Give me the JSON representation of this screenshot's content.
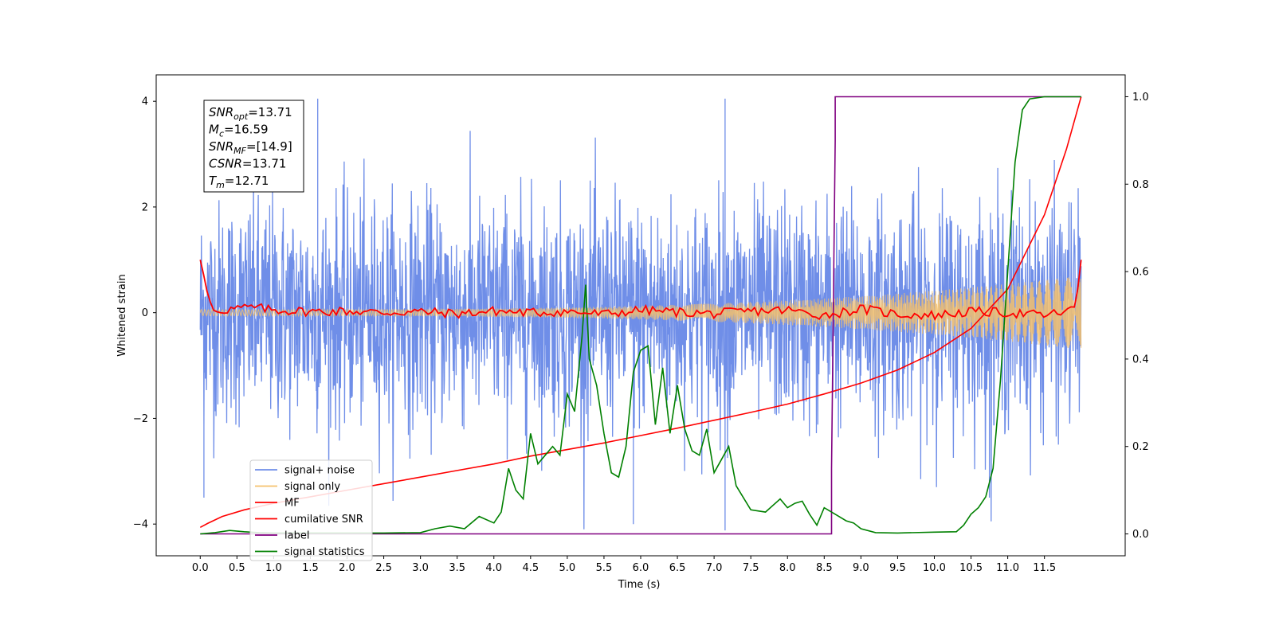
{
  "chart_data": {
    "type": "line",
    "xlabel": "Time (s)",
    "ylabel": "Whitened strain",
    "xlim": [
      -0.6,
      12.6
    ],
    "ylim": [
      -4.6,
      4.5
    ],
    "y2lim": [
      -0.05,
      1.05
    ],
    "xticks": [
      "0.0",
      "0.5",
      "1.0",
      "1.5",
      "2.0",
      "2.5",
      "3.0",
      "3.5",
      "4.0",
      "4.5",
      "5.0",
      "5.5",
      "6.0",
      "6.5",
      "7.0",
      "7.5",
      "8.0",
      "8.5",
      "9.0",
      "9.5",
      "10.0",
      "10.5",
      "11.0",
      "11.5"
    ],
    "yticks": [
      "4",
      "2",
      "0",
      "−2",
      "−4"
    ],
    "y2ticks": [
      "1.0",
      "0.8",
      "0.6",
      "0.4",
      "0.2",
      "0.0"
    ],
    "legend": {
      "placement": "lower-left",
      "entries": [
        "signal+ noise",
        "signal only",
        "MF",
        "cumilative SNR",
        "label",
        "signal statistics"
      ]
    },
    "annotation": {
      "lines": [
        {
          "sym": "SNR",
          "sub": "opt",
          "val": "=13.71"
        },
        {
          "sym": "M",
          "sub": "c",
          "val": "=16.59"
        },
        {
          "sym": "SNR",
          "sub": "MF",
          "val": "=[14.9]"
        },
        {
          "sym": "CSNR",
          "sub": "",
          "val": "=13.71"
        },
        {
          "sym": "T",
          "sub": "m",
          "val": "=12.71"
        }
      ]
    },
    "series": [
      {
        "name": "signal+ noise",
        "axis": "left",
        "color": "#6f8ee8",
        "description_values": {
          "x_range": [
            0,
            12
          ],
          "amplitude_std": 1.0,
          "peak_max": 4.05,
          "peak_min": -4.12
        }
      },
      {
        "name": "signal only",
        "axis": "left",
        "color": "#f5c16c",
        "chirp": {
          "x_range": [
            0,
            12
          ],
          "amp_start": 0.06,
          "amp_end": 0.7
        }
      },
      {
        "name": "MF",
        "axis": "left",
        "color": "#ff0000",
        "x": [
          0.0,
          0.05,
          0.1,
          0.15,
          0.2,
          0.3,
          0.5,
          0.7,
          1.0,
          1.5,
          2.0,
          2.5,
          3.0,
          3.5,
          4.0,
          4.5,
          5.0,
          5.5,
          6.0,
          6.5,
          7.0,
          7.5,
          8.0,
          8.5,
          9.0,
          9.5,
          10.0,
          10.5,
          11.0,
          11.5,
          11.9,
          11.96,
          12.0
        ],
        "y": [
          1.0,
          0.7,
          0.35,
          0.15,
          0.0,
          0.05,
          0.08,
          0.1,
          0.05,
          0.02,
          0.03,
          0.0,
          0.02,
          -0.02,
          0.03,
          0.0,
          0.02,
          -0.03,
          0.05,
          0.01,
          -0.02,
          0.03,
          0.05,
          -0.05,
          0.07,
          -0.03,
          -0.05,
          0.02,
          0.0,
          -0.05,
          0.05,
          0.5,
          1.0
        ]
      },
      {
        "name": "cumilative SNR",
        "axis": "right",
        "color": "#ff0000",
        "x": [
          0.0,
          0.1,
          0.3,
          0.6,
          1.0,
          1.5,
          2.0,
          2.5,
          3.0,
          3.5,
          4.0,
          4.5,
          5.0,
          5.5,
          6.0,
          6.5,
          7.0,
          7.5,
          8.0,
          8.5,
          9.0,
          9.5,
          10.0,
          10.5,
          11.0,
          11.5,
          11.8,
          12.0
        ],
        "y": [
          0.015,
          0.024,
          0.04,
          0.055,
          0.07,
          0.085,
          0.1,
          0.115,
          0.13,
          0.145,
          0.16,
          0.178,
          0.193,
          0.208,
          0.225,
          0.242,
          0.26,
          0.278,
          0.297,
          0.32,
          0.345,
          0.375,
          0.415,
          0.47,
          0.56,
          0.73,
          0.88,
          1.0
        ]
      },
      {
        "name": "label",
        "axis": "right",
        "color": "#800080",
        "x": [
          0.0,
          8.6,
          8.6,
          8.65,
          8.65,
          12.0
        ],
        "y": [
          0.0,
          0.0,
          0.15,
          0.9,
          1.0,
          1.0
        ]
      },
      {
        "name": "signal statistics",
        "axis": "right",
        "color": "#008000",
        "x": [
          0.0,
          0.2,
          0.4,
          0.6,
          0.8,
          1.0,
          1.5,
          2.0,
          2.5,
          3.0,
          3.2,
          3.4,
          3.6,
          3.8,
          4.0,
          4.1,
          4.2,
          4.3,
          4.4,
          4.5,
          4.6,
          4.7,
          4.8,
          4.9,
          5.0,
          5.1,
          5.2,
          5.25,
          5.3,
          5.4,
          5.5,
          5.6,
          5.7,
          5.8,
          5.9,
          6.0,
          6.1,
          6.2,
          6.3,
          6.4,
          6.5,
          6.6,
          6.7,
          6.8,
          6.9,
          7.0,
          7.1,
          7.2,
          7.3,
          7.5,
          7.7,
          7.9,
          8.0,
          8.1,
          8.2,
          8.3,
          8.4,
          8.5,
          8.6,
          8.7,
          8.8,
          8.9,
          9.0,
          9.2,
          9.5,
          10.0,
          10.3,
          10.4,
          10.5,
          10.6,
          10.7,
          10.8,
          10.9,
          11.0,
          11.1,
          11.2,
          11.3,
          11.5,
          12.0
        ],
        "y": [
          0.0,
          0.003,
          0.008,
          0.005,
          0.003,
          0.002,
          0.002,
          0.002,
          0.002,
          0.003,
          0.012,
          0.018,
          0.012,
          0.04,
          0.025,
          0.05,
          0.15,
          0.1,
          0.08,
          0.23,
          0.16,
          0.18,
          0.2,
          0.18,
          0.32,
          0.28,
          0.45,
          0.57,
          0.4,
          0.34,
          0.23,
          0.14,
          0.13,
          0.2,
          0.37,
          0.42,
          0.43,
          0.25,
          0.38,
          0.23,
          0.34,
          0.24,
          0.19,
          0.18,
          0.24,
          0.14,
          0.17,
          0.2,
          0.11,
          0.055,
          0.05,
          0.08,
          0.06,
          0.07,
          0.075,
          0.045,
          0.02,
          0.06,
          0.05,
          0.04,
          0.03,
          0.025,
          0.012,
          0.003,
          0.002,
          0.004,
          0.005,
          0.02,
          0.045,
          0.06,
          0.085,
          0.15,
          0.35,
          0.6,
          0.85,
          0.97,
          0.995,
          1.0,
          1.0
        ]
      }
    ]
  }
}
